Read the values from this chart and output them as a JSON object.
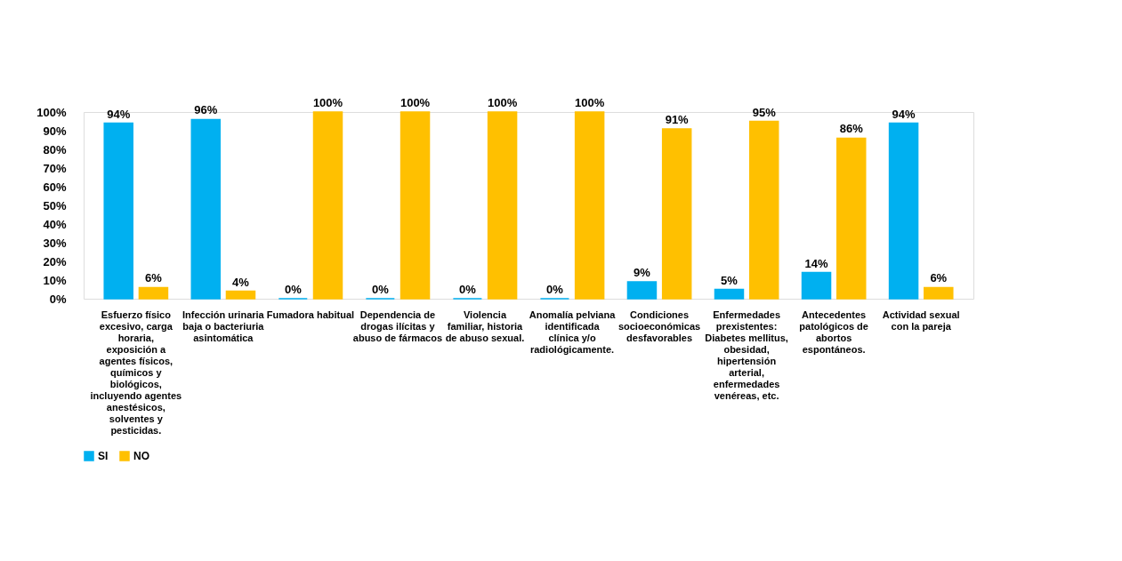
{
  "chart_data": {
    "type": "bar",
    "categories": [
      "Esfuerzo físico excesivo, carga horaria, exposición a agentes físicos, químicos y biológicos, incluyendo agentes anestésicos, solventes y pesticidas.",
      "Infección urinaria baja o bacteriuria asintomática",
      "Fumadora habitual",
      "Dependencia de drogas ilícitas y abuso de fármacos",
      "Violencia familiar, historia de abuso sexual.",
      "Anomalía pelviana identificada clínica y/o radiológicamente.",
      "Condiciones socioeconómicas desfavorables",
      "Enfermedades prexistentes: Diabetes mellitus, obesidad, hipertensión arterial, enfermedades venéreas, etc.",
      "Antecedentes patológicos de abortos espontáneos.",
      "Actividad sexual con la pareja"
    ],
    "series": [
      {
        "name": "SI",
        "color": "#00b0f0",
        "values": [
          94,
          96,
          0,
          0,
          0,
          0,
          9,
          5,
          14,
          94
        ],
        "value_labels": [
          "94%",
          "96%",
          "0%",
          "0%",
          "0%",
          "0%",
          "9%",
          "5%",
          "14%",
          "94%"
        ]
      },
      {
        "name": "NO",
        "color": "#ffc000",
        "values": [
          6,
          4,
          100,
          100,
          100,
          100,
          91,
          95,
          86,
          6
        ],
        "value_labels": [
          "6%",
          "4%",
          "100%",
          "100%",
          "100%",
          "100%",
          "91%",
          "95%",
          "86%",
          "6%"
        ]
      }
    ],
    "ylim": [
      0,
      100
    ],
    "yticks": [
      {
        "value": 0,
        "label": "0%"
      },
      {
        "value": 10,
        "label": "10%"
      },
      {
        "value": 20,
        "label": "20%"
      },
      {
        "value": 30,
        "label": "30%"
      },
      {
        "value": 40,
        "label": "40%"
      },
      {
        "value": 50,
        "label": "50%"
      },
      {
        "value": 60,
        "label": "60%"
      },
      {
        "value": 70,
        "label": "70%"
      },
      {
        "value": 80,
        "label": "80%"
      },
      {
        "value": 90,
        "label": "90%"
      },
      {
        "value": 100,
        "label": "100%"
      }
    ],
    "grid": false,
    "legend": "bottom"
  }
}
